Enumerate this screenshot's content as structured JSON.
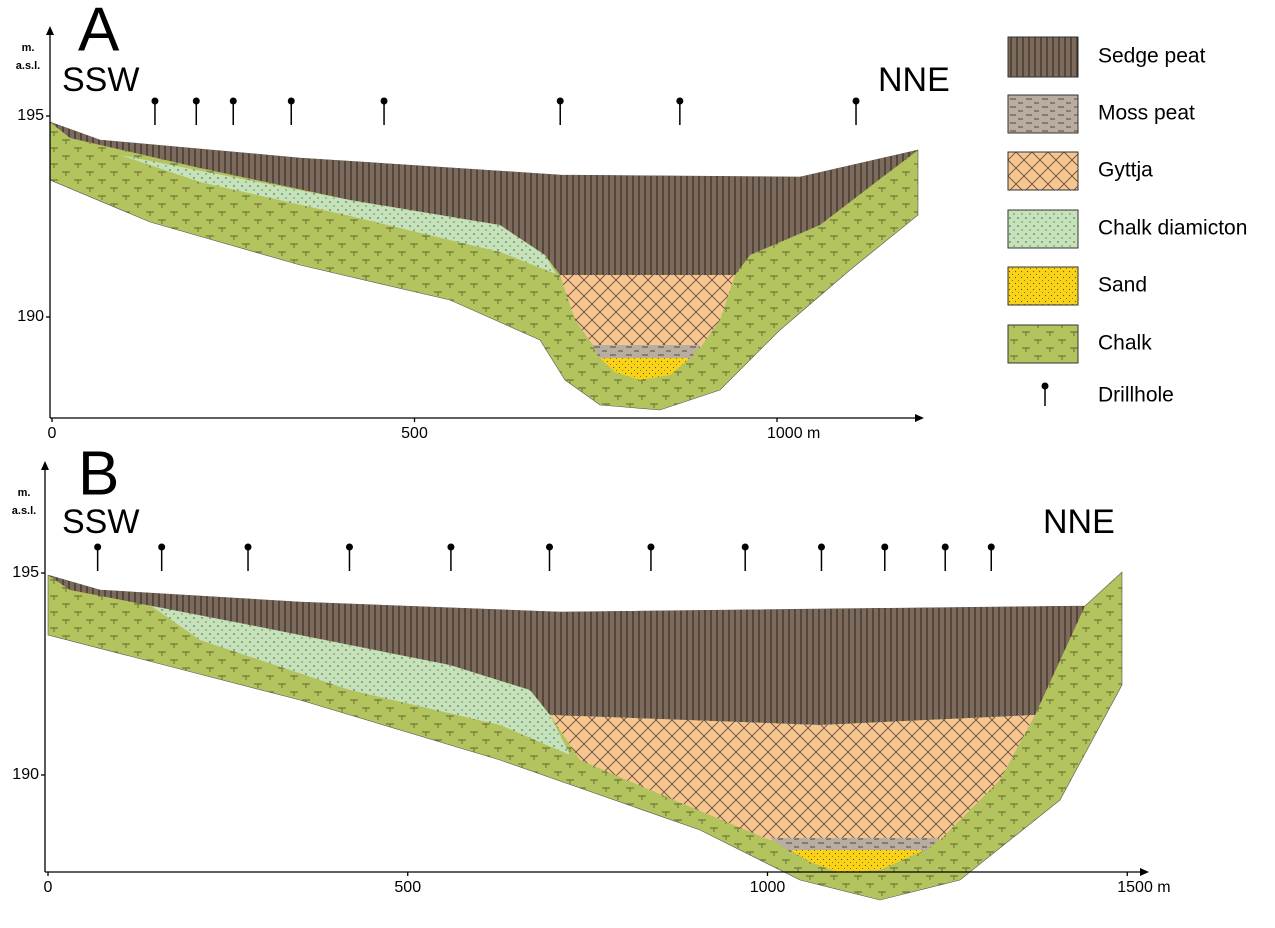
{
  "panels": [
    {
      "label": "A",
      "left_label": "SSW",
      "right_label": "NNE",
      "y_axis_label": [
        "m.",
        "a.s.l."
      ],
      "xticks": [
        0,
        500,
        {
          "value": 1000,
          "label": "1000 m"
        }
      ],
      "yticks": [
        195,
        190
      ],
      "drillholes": [
        142,
        199,
        250,
        330,
        458,
        701,
        866,
        1109
      ]
    },
    {
      "label": "B",
      "left_label": "SSW",
      "right_label": "NNE",
      "y_axis_label": [
        "m.",
        "a.s.l."
      ],
      "xticks": [
        0,
        500,
        1000,
        {
          "value": 1500,
          "label": "1500 m"
        }
      ],
      "yticks": [
        195,
        190
      ],
      "drillholes": [
        69,
        158,
        278,
        419,
        560,
        697,
        838,
        969,
        1075,
        1163,
        1247,
        1311
      ]
    }
  ],
  "legend": [
    "Sedge peat",
    "Moss peat",
    "Gyttja",
    "Chalk diamicton",
    "Sand",
    "Chalk",
    "Drillhole"
  ]
}
